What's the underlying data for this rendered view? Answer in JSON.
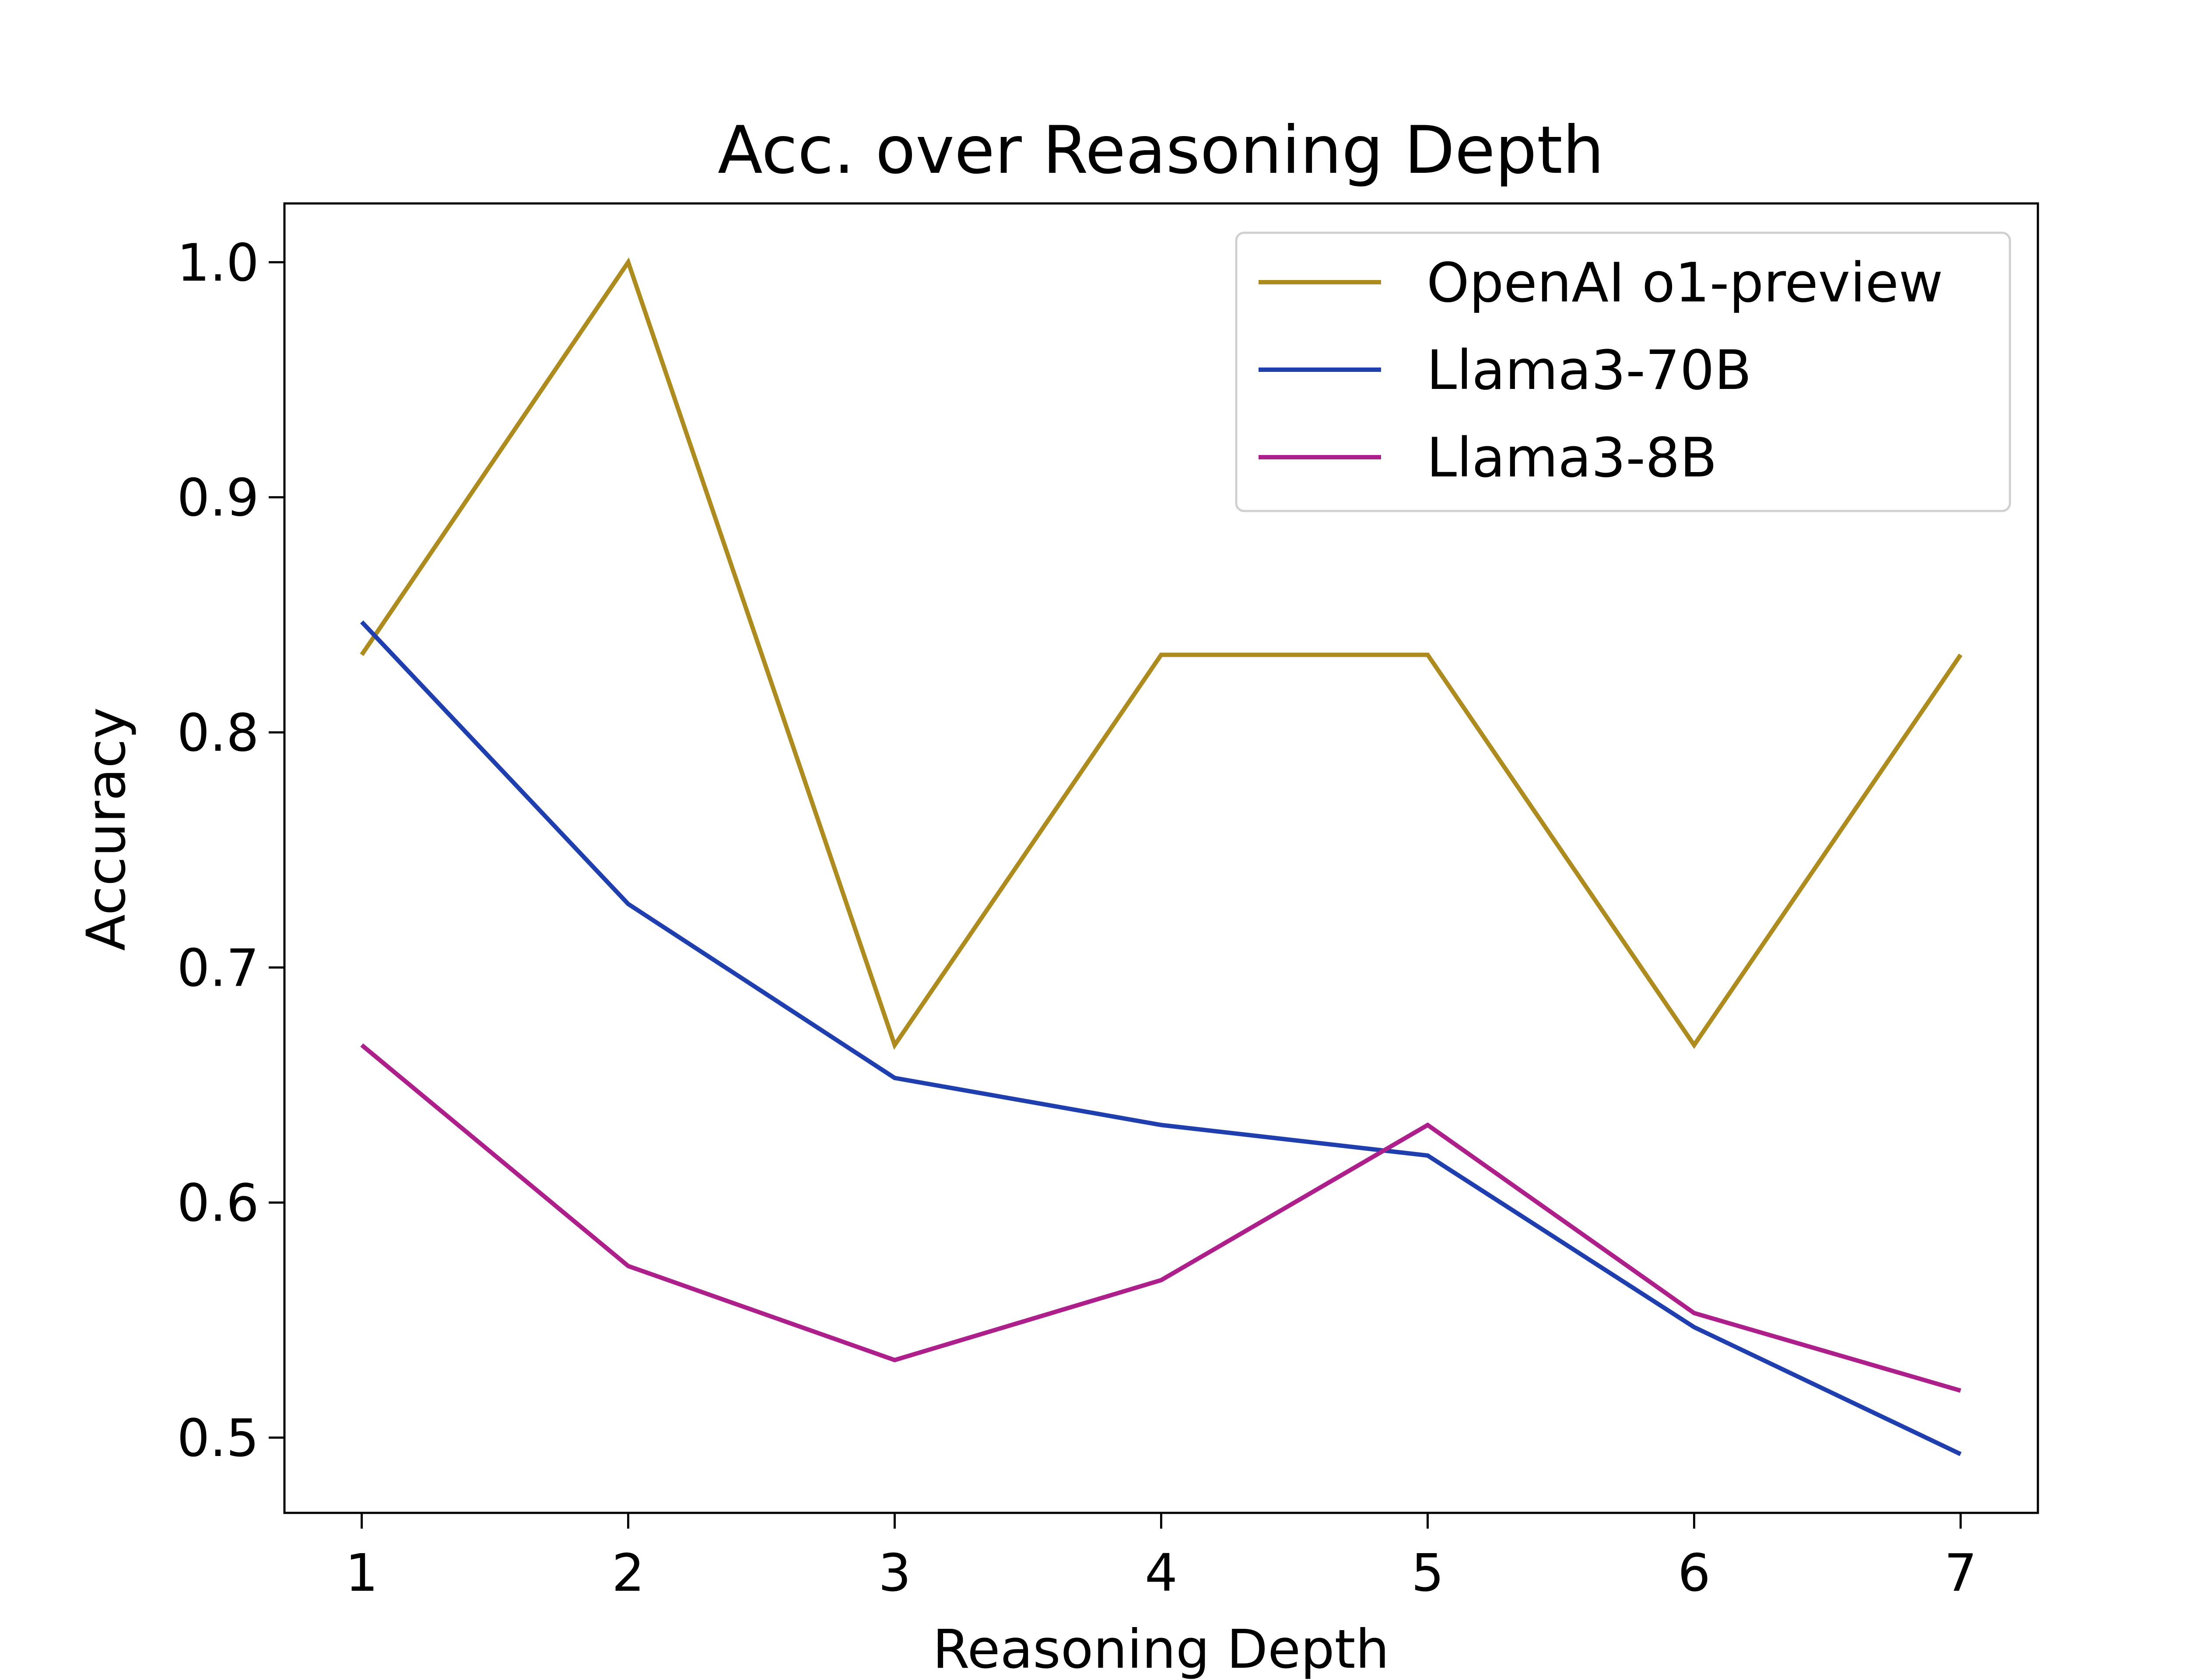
{
  "chart_data": {
    "type": "line",
    "title": "Acc. over Reasoning Depth",
    "xlabel": "Reasoning Depth",
    "ylabel": "Accuracy",
    "x": [
      1,
      2,
      3,
      4,
      5,
      6,
      7
    ],
    "xticks": [
      "1",
      "2",
      "3",
      "4",
      "5",
      "6",
      "7"
    ],
    "yticks": [
      "0.5",
      "0.6",
      "0.7",
      "0.8",
      "0.9",
      "1.0"
    ],
    "xlim": [
      0.71,
      7.29
    ],
    "ylim": [
      0.468,
      1.025
    ],
    "grid": false,
    "legend": "top-right",
    "series": [
      {
        "name": "OpenAI o1-preview",
        "color": "#ad8b1f",
        "values": [
          0.833,
          1.0,
          0.667,
          0.833,
          0.833,
          0.667,
          0.833
        ]
      },
      {
        "name": "Llama3-70B",
        "color": "#1f3fae",
        "values": [
          0.847,
          0.727,
          0.653,
          0.633,
          0.62,
          0.547,
          0.493
        ]
      },
      {
        "name": "Llama3-8B",
        "color": "#ad1f8b",
        "values": [
          0.667,
          0.573,
          0.533,
          0.567,
          0.633,
          0.553,
          0.52
        ]
      }
    ]
  }
}
